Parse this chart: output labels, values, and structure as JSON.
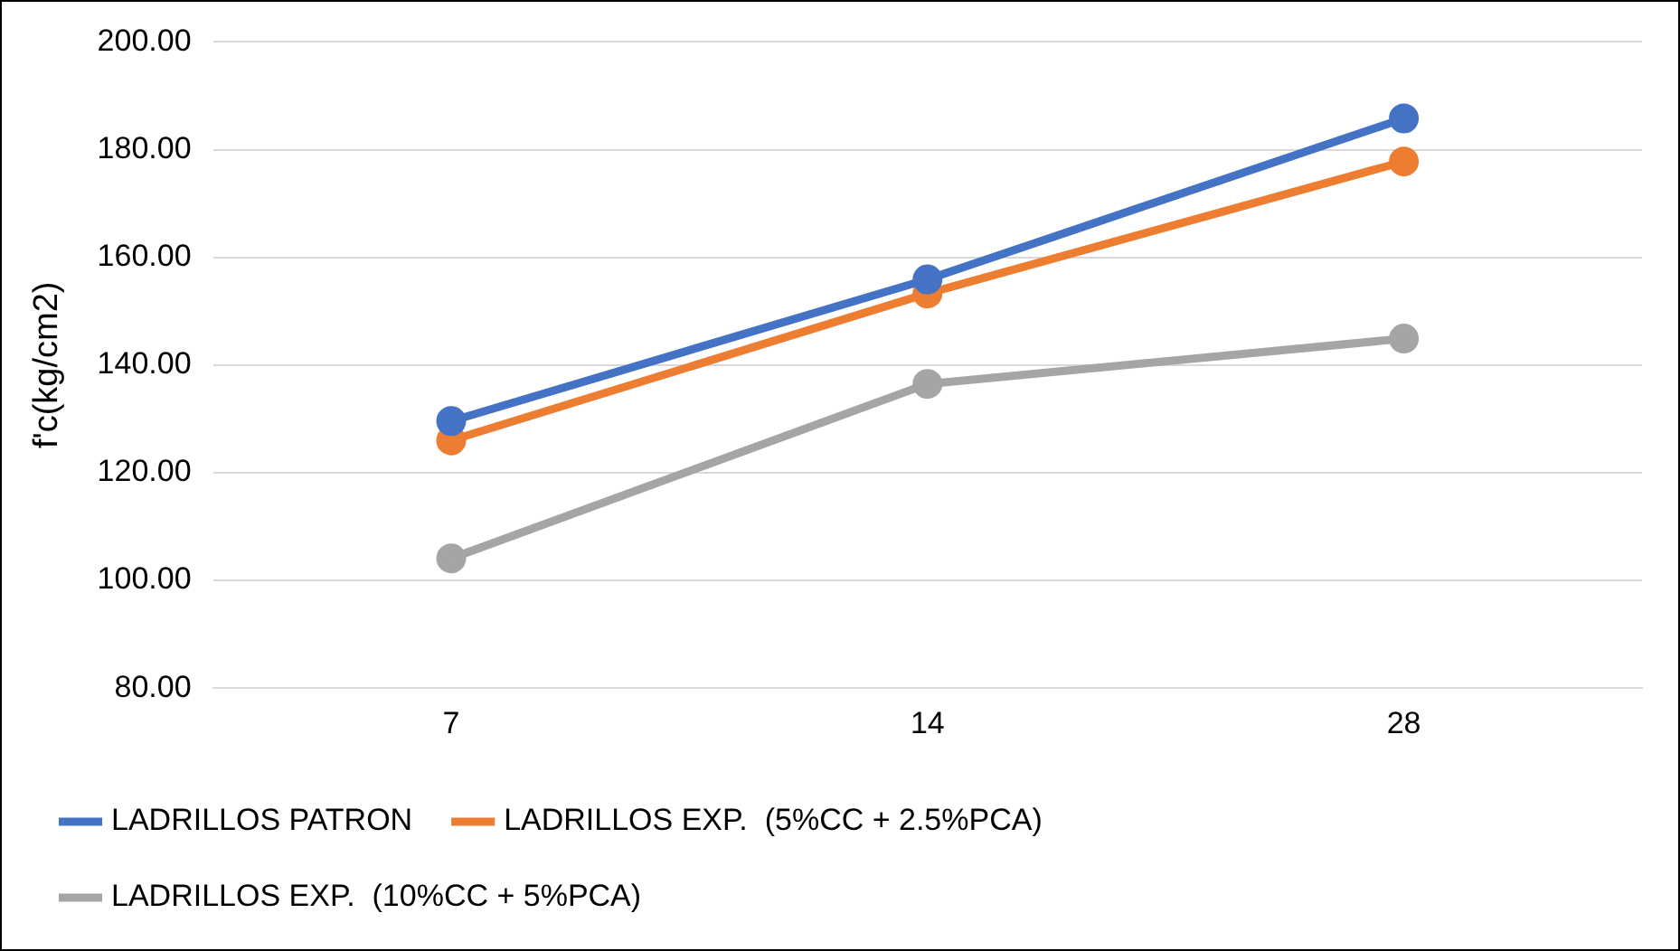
{
  "chart_data": {
    "type": "line",
    "ylabel": "f'c(kg/cm2)",
    "categories": [
      "7",
      "14",
      "28"
    ],
    "series": [
      {
        "name": "LADRILLOS PATRON",
        "color": "#4472c4",
        "values": [
          129.6,
          155.9,
          185.8
        ]
      },
      {
        "name": "LADRILLOS EXP.  (5%CC + 2.5%PCA)",
        "color": "#ed7d31",
        "values": [
          126.0,
          153.3,
          177.8
        ]
      },
      {
        "name": "LADRILLOS EXP.  (10%CC + 5%PCA)",
        "color": "#a5a5a5",
        "values": [
          104.1,
          136.5,
          144.9
        ]
      }
    ],
    "ylim": [
      80,
      200
    ],
    "yticks": [
      {
        "value": 80,
        "label": "80.00"
      },
      {
        "value": 100,
        "label": "100.00"
      },
      {
        "value": 120,
        "label": "120.00"
      },
      {
        "value": 140,
        "label": "140.00"
      },
      {
        "value": 160,
        "label": "160.00"
      },
      {
        "value": 180,
        "label": "180.00"
      },
      {
        "value": 200,
        "label": "200.00"
      }
    ],
    "grid": "y",
    "legend": "bottom",
    "marker": "circle",
    "line_style": "solid"
  }
}
